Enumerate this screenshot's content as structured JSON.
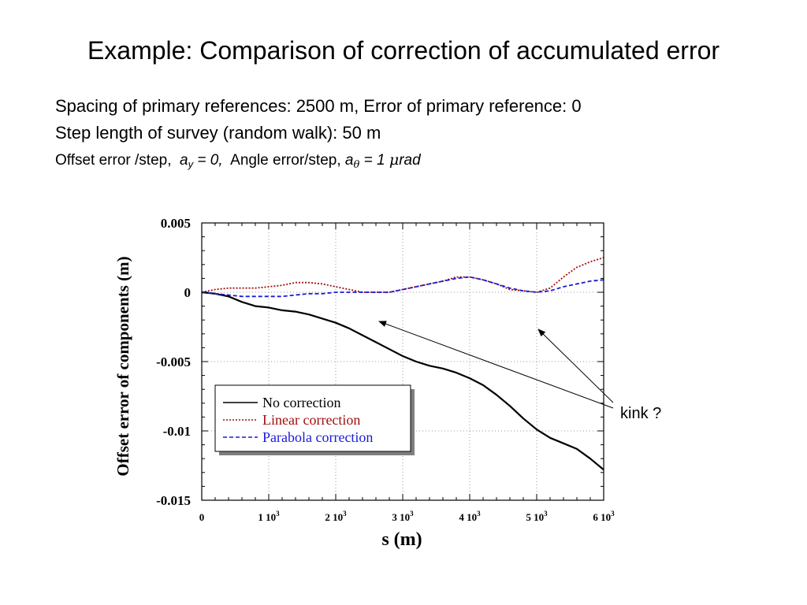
{
  "slide": {
    "title": "Example: Comparison of correction of accumulated error",
    "line1": "Spacing of primary references: 2500 m, Error of primary reference: 0",
    "line2": "Step length of survey (random walk): 50 m",
    "params": {
      "offset_label": "Offset error /step,",
      "offset_sym": "a",
      "offset_sub": "y",
      "offset_value": "= 0,",
      "angle_label": "Angle error/step,",
      "angle_sym": "a",
      "angle_sub": "θ",
      "angle_value": "= 1",
      "angle_unit_sym": "μ",
      "angle_unit": "rad"
    },
    "annotation": "kink ?"
  },
  "chart_data": {
    "type": "line",
    "xlabel": "s (m)",
    "ylabel": "Offset error of components (m)",
    "xlim": [
      0,
      6000
    ],
    "ylim": [
      -0.015,
      0.005
    ],
    "grid": true,
    "grid_style": "dotted",
    "xticks": [
      {
        "value": 0,
        "mantissa": "0",
        "exp": ""
      },
      {
        "value": 1000,
        "mantissa": "1 10",
        "exp": "3"
      },
      {
        "value": 2000,
        "mantissa": "2 10",
        "exp": "3"
      },
      {
        "value": 3000,
        "mantissa": "3 10",
        "exp": "3"
      },
      {
        "value": 4000,
        "mantissa": "4 10",
        "exp": "3"
      },
      {
        "value": 5000,
        "mantissa": "5 10",
        "exp": "3"
      },
      {
        "value": 6000,
        "mantissa": "6 10",
        "exp": "3"
      }
    ],
    "yticks": [
      {
        "value": 0.005,
        "label": "0.005"
      },
      {
        "value": 0,
        "label": "0"
      },
      {
        "value": -0.005,
        "label": "-0.005"
      },
      {
        "value": -0.01,
        "label": "-0.01"
      },
      {
        "value": -0.015,
        "label": "-0.015"
      }
    ],
    "legend_position": "lower-left",
    "series": [
      {
        "name": "No correction",
        "color": "#000000",
        "dash": "solid",
        "x": [
          0,
          200,
          400,
          600,
          800,
          1000,
          1200,
          1400,
          1600,
          1800,
          2000,
          2200,
          2400,
          2600,
          2800,
          3000,
          3200,
          3400,
          3600,
          3800,
          4000,
          4200,
          4400,
          4600,
          4800,
          5000,
          5200,
          5400,
          5600,
          5800,
          6000
        ],
        "y": [
          0,
          -0.0001,
          -0.0003,
          -0.0007,
          -0.001,
          -0.0011,
          -0.0013,
          -0.0014,
          -0.0016,
          -0.0019,
          -0.0022,
          -0.0026,
          -0.0031,
          -0.0036,
          -0.0041,
          -0.0046,
          -0.005,
          -0.0053,
          -0.0055,
          -0.0058,
          -0.0062,
          -0.0067,
          -0.0074,
          -0.0082,
          -0.0091,
          -0.0099,
          -0.0105,
          -0.0109,
          -0.0113,
          -0.012,
          -0.0128
        ]
      },
      {
        "name": "Linear correction",
        "color": "#a01010",
        "dash": "dotted",
        "x": [
          0,
          200,
          400,
          600,
          800,
          1000,
          1200,
          1400,
          1600,
          1800,
          2000,
          2200,
          2400,
          2600,
          2800,
          3000,
          3200,
          3400,
          3600,
          3800,
          4000,
          4200,
          4400,
          4600,
          4800,
          5000,
          5200,
          5400,
          5600,
          5800,
          6000
        ],
        "y": [
          0,
          0.0002,
          0.0003,
          0.0003,
          0.0003,
          0.0004,
          0.0005,
          0.0007,
          0.0007,
          0.0006,
          0.0004,
          0.0002,
          0.0,
          0.0,
          0.0,
          0.0002,
          0.0004,
          0.0006,
          0.0008,
          0.0011,
          0.0011,
          0.0009,
          0.0006,
          0.0002,
          0.0001,
          0.0,
          0.0003,
          0.0011,
          0.0018,
          0.0022,
          0.0025
        ]
      },
      {
        "name": "Parabola correction",
        "color": "#1a1ad8",
        "dash": "dashed",
        "x": [
          0,
          200,
          400,
          600,
          800,
          1000,
          1200,
          1400,
          1600,
          1800,
          2000,
          2200,
          2400,
          2600,
          2800,
          3000,
          3200,
          3400,
          3600,
          3800,
          4000,
          4200,
          4400,
          4600,
          4800,
          5000,
          5200,
          5400,
          5600,
          5800,
          6000
        ],
        "y": [
          0,
          -0.0001,
          -0.0002,
          -0.0003,
          -0.0003,
          -0.0003,
          -0.0003,
          -0.0002,
          -0.0001,
          -0.0001,
          0.0,
          0.0,
          0.0,
          0.0,
          0.0,
          0.0002,
          0.0004,
          0.0006,
          0.0008,
          0.001,
          0.0011,
          0.0009,
          0.0006,
          0.0003,
          0.0001,
          0.0,
          0.0001,
          0.0004,
          0.0006,
          0.0008,
          0.0009
        ]
      }
    ]
  }
}
